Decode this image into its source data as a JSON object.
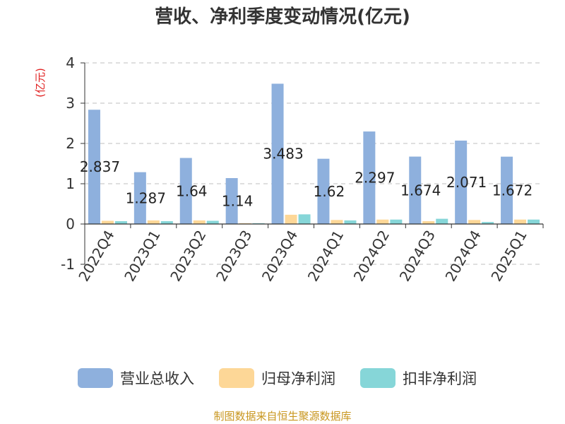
{
  "chart_data": {
    "type": "bar",
    "title": "营收、净利季度变动情况(亿元)",
    "ylabel": "(亿元)",
    "xlabel": "",
    "ylim": [
      -1,
      4
    ],
    "yticks": [
      -1,
      0,
      1,
      2,
      3,
      4
    ],
    "grid": true,
    "legend_position": "bottom",
    "categories": [
      "2022Q4",
      "2023Q1",
      "2023Q2",
      "2023Q3",
      "2023Q4",
      "2024Q1",
      "2024Q2",
      "2024Q3",
      "2024Q4",
      "2025Q1"
    ],
    "series": [
      {
        "name": "营业总收入",
        "color": "#8eb0dd",
        "values": [
          2.837,
          1.287,
          1.64,
          1.14,
          3.483,
          1.62,
          2.297,
          1.674,
          2.071,
          1.672
        ],
        "labels": [
          "2.837",
          "1.287",
          "1.64",
          "1.14",
          "3.483",
          "1.62",
          "2.297",
          "1.674",
          "2.071",
          "1.672"
        ]
      },
      {
        "name": "归母净利润",
        "color": "#fdd797",
        "values": [
          0.08,
          0.09,
          0.09,
          0.02,
          0.23,
          0.1,
          0.11,
          0.07,
          0.1,
          0.11
        ]
      },
      {
        "name": "扣非净利润",
        "color": "#86d6d8",
        "values": [
          0.07,
          0.07,
          0.08,
          0.02,
          0.24,
          0.09,
          0.11,
          0.13,
          0.05,
          0.11
        ]
      }
    ]
  },
  "footer": {
    "source": "制图数据来自恒生聚源数据库"
  },
  "colors": {
    "title": "#333333",
    "ylabel": "#e02020",
    "axis": "#333333",
    "grid": "#cccccc",
    "footer": "#c8961e"
  }
}
